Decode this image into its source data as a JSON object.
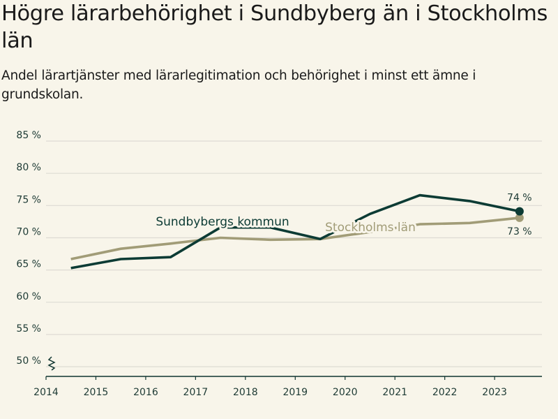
{
  "title": "Högre lärarbehörighet i Sundbyberg än i Stockholms län",
  "subtitle": "Andel lärartjänster med lärarlegitimation och behörighet i minst ett ämne i grundskolan.",
  "colors": {
    "background": "#f8f5ea",
    "grid": "#dddbd3",
    "axis": "#0f3530",
    "sundbyberg": "#0c3b34",
    "stockholm": "#a19c77",
    "tick_text": "#1d3a34"
  },
  "chart_data": {
    "type": "line",
    "title": "Högre lärarbehörighet i Sundbyberg än i Stockholms län",
    "subtitle": "Andel lärartjänster med lärarlegitimation och behörighet i minst ett ämne i grundskolan.",
    "xlabel": "",
    "ylabel": "",
    "x": [
      2014.5,
      2015.5,
      2016.5,
      2017.5,
      2018.5,
      2019.5,
      2020.5,
      2021.5,
      2022.5,
      2023.5
    ],
    "xlim": [
      2014,
      2023.95
    ],
    "xticks": [
      "2014",
      "2015",
      "2016",
      "2017",
      "2018",
      "2019",
      "2020",
      "2021",
      "2022",
      "2023"
    ],
    "xtick_values": [
      2014,
      2015,
      2016,
      2017,
      2018,
      2019,
      2020,
      2021,
      2022,
      2023
    ],
    "ylim": [
      48.5,
      85
    ],
    "yticks": [
      50,
      55,
      60,
      65,
      70,
      75,
      80,
      85
    ],
    "ytick_labels": [
      "50 %",
      "55 %",
      "60 %",
      "65 %",
      "70 %",
      "75 %",
      "80 %",
      "85 %"
    ],
    "axis_break": true,
    "grid": true,
    "legend": "direct-labels",
    "series": [
      {
        "name": "Sundbybergs kommun",
        "color": "#0c3b34",
        "values": [
          65.3,
          66.7,
          67.0,
          71.6,
          71.6,
          69.8,
          73.7,
          76.6,
          75.7,
          74.1
        ],
        "end_label": "74 %"
      },
      {
        "name": "Stockholms län",
        "color": "#a19c77",
        "values": [
          66.7,
          68.3,
          69.1,
          70.0,
          69.7,
          69.8,
          70.9,
          72.1,
          72.3,
          73.1
        ],
        "end_label": "73 %"
      }
    ]
  }
}
